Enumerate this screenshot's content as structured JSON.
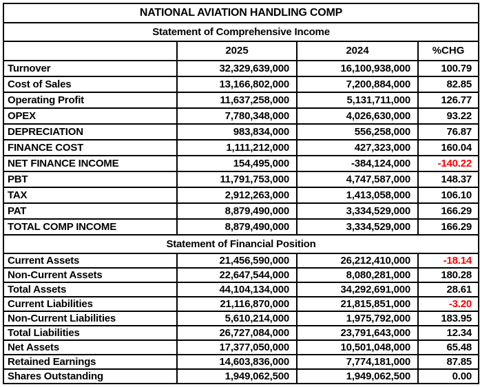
{
  "chart_data": {
    "type": "table",
    "title": "NATIONAL AVIATION HANDLING COMP",
    "sections": [
      {
        "heading": "Statement of Comprehensive Income",
        "columns": [
          "",
          "2025",
          "2024",
          "%CHG"
        ],
        "rows": [
          {
            "label": "Turnover",
            "v2025": "32,329,639,000",
            "v2024": "16,100,938,000",
            "pct_chg": "100.79",
            "pct_negative": false
          },
          {
            "label": "Cost of Sales",
            "v2025": "13,166,802,000",
            "v2024": "7,200,884,000",
            "pct_chg": "82.85",
            "pct_negative": false
          },
          {
            "label": "Operating Profit",
            "v2025": "11,637,258,000",
            "v2024": "5,131,711,000",
            "pct_chg": "126.77",
            "pct_negative": false
          },
          {
            "label": "OPEX",
            "v2025": "7,780,348,000",
            "v2024": "4,026,630,000",
            "pct_chg": "93.22",
            "pct_negative": false
          },
          {
            "label": "DEPRECIATION",
            "v2025": "983,834,000",
            "v2024": "556,258,000",
            "pct_chg": "76.87",
            "pct_negative": false
          },
          {
            "label": "FINANCE COST",
            "v2025": "1,111,212,000",
            "v2024": "427,323,000",
            "pct_chg": "160.04",
            "pct_negative": false
          },
          {
            "label": "NET FINANCE INCOME",
            "v2025": "154,495,000",
            "v2024": "-384,124,000",
            "pct_chg": "-140.22",
            "pct_negative": true
          },
          {
            "label": "PBT",
            "v2025": "11,791,753,000",
            "v2024": "4,747,587,000",
            "pct_chg": "148.37",
            "pct_negative": false
          },
          {
            "label": "TAX",
            "v2025": "2,912,263,000",
            "v2024": "1,413,058,000",
            "pct_chg": "106.10",
            "pct_negative": false
          },
          {
            "label": "PAT",
            "v2025": "8,879,490,000",
            "v2024": "3,334,529,000",
            "pct_chg": "166.29",
            "pct_negative": false
          },
          {
            "label": "TOTAL COMP INCOME",
            "v2025": "8,879,490,000",
            "v2024": "3,334,529,000",
            "pct_chg": "166.29",
            "pct_negative": false
          }
        ]
      },
      {
        "heading": "Statement of Financial Position",
        "rows": [
          {
            "label": "Current Assets",
            "v2025": "21,456,590,000",
            "v2024": "26,212,410,000",
            "pct_chg": "-18.14",
            "pct_negative": true
          },
          {
            "label": "Non-Current Assets",
            "v2025": "22,647,544,000",
            "v2024": "8,080,281,000",
            "pct_chg": "180.28",
            "pct_negative": false
          },
          {
            "label": "Total Assets",
            "v2025": "44,104,134,000",
            "v2024": "34,292,691,000",
            "pct_chg": "28.61",
            "pct_negative": false
          },
          {
            "label": "Current Liabilities",
            "v2025": "21,116,870,000",
            "v2024": "21,815,851,000",
            "pct_chg": "-3.20",
            "pct_negative": true
          },
          {
            "label": "Non-Current Liabilities",
            "v2025": "5,610,214,000",
            "v2024": "1,975,792,000",
            "pct_chg": "183.95",
            "pct_negative": false
          },
          {
            "label": "Total Liabilities",
            "v2025": "26,727,084,000",
            "v2024": "23,791,643,000",
            "pct_chg": "12.34",
            "pct_negative": false
          },
          {
            "label": "Net Assets",
            "v2025": "17,377,050,000",
            "v2024": "10,501,048,000",
            "pct_chg": "65.48",
            "pct_negative": false
          },
          {
            "label": "Retained Earnings",
            "v2025": "14,603,836,000",
            "v2024": "7,774,181,000",
            "pct_chg": "87.85",
            "pct_negative": false
          },
          {
            "label": "Shares Outstanding",
            "v2025": "1,949,062,500",
            "v2024": "1,949,062,500",
            "pct_chg": "0.00",
            "pct_negative": false
          }
        ]
      }
    ],
    "colors": {
      "text": "#000000",
      "negative_value": "#FF0000",
      "border": "#000000",
      "background": "#FFFFFF"
    }
  }
}
